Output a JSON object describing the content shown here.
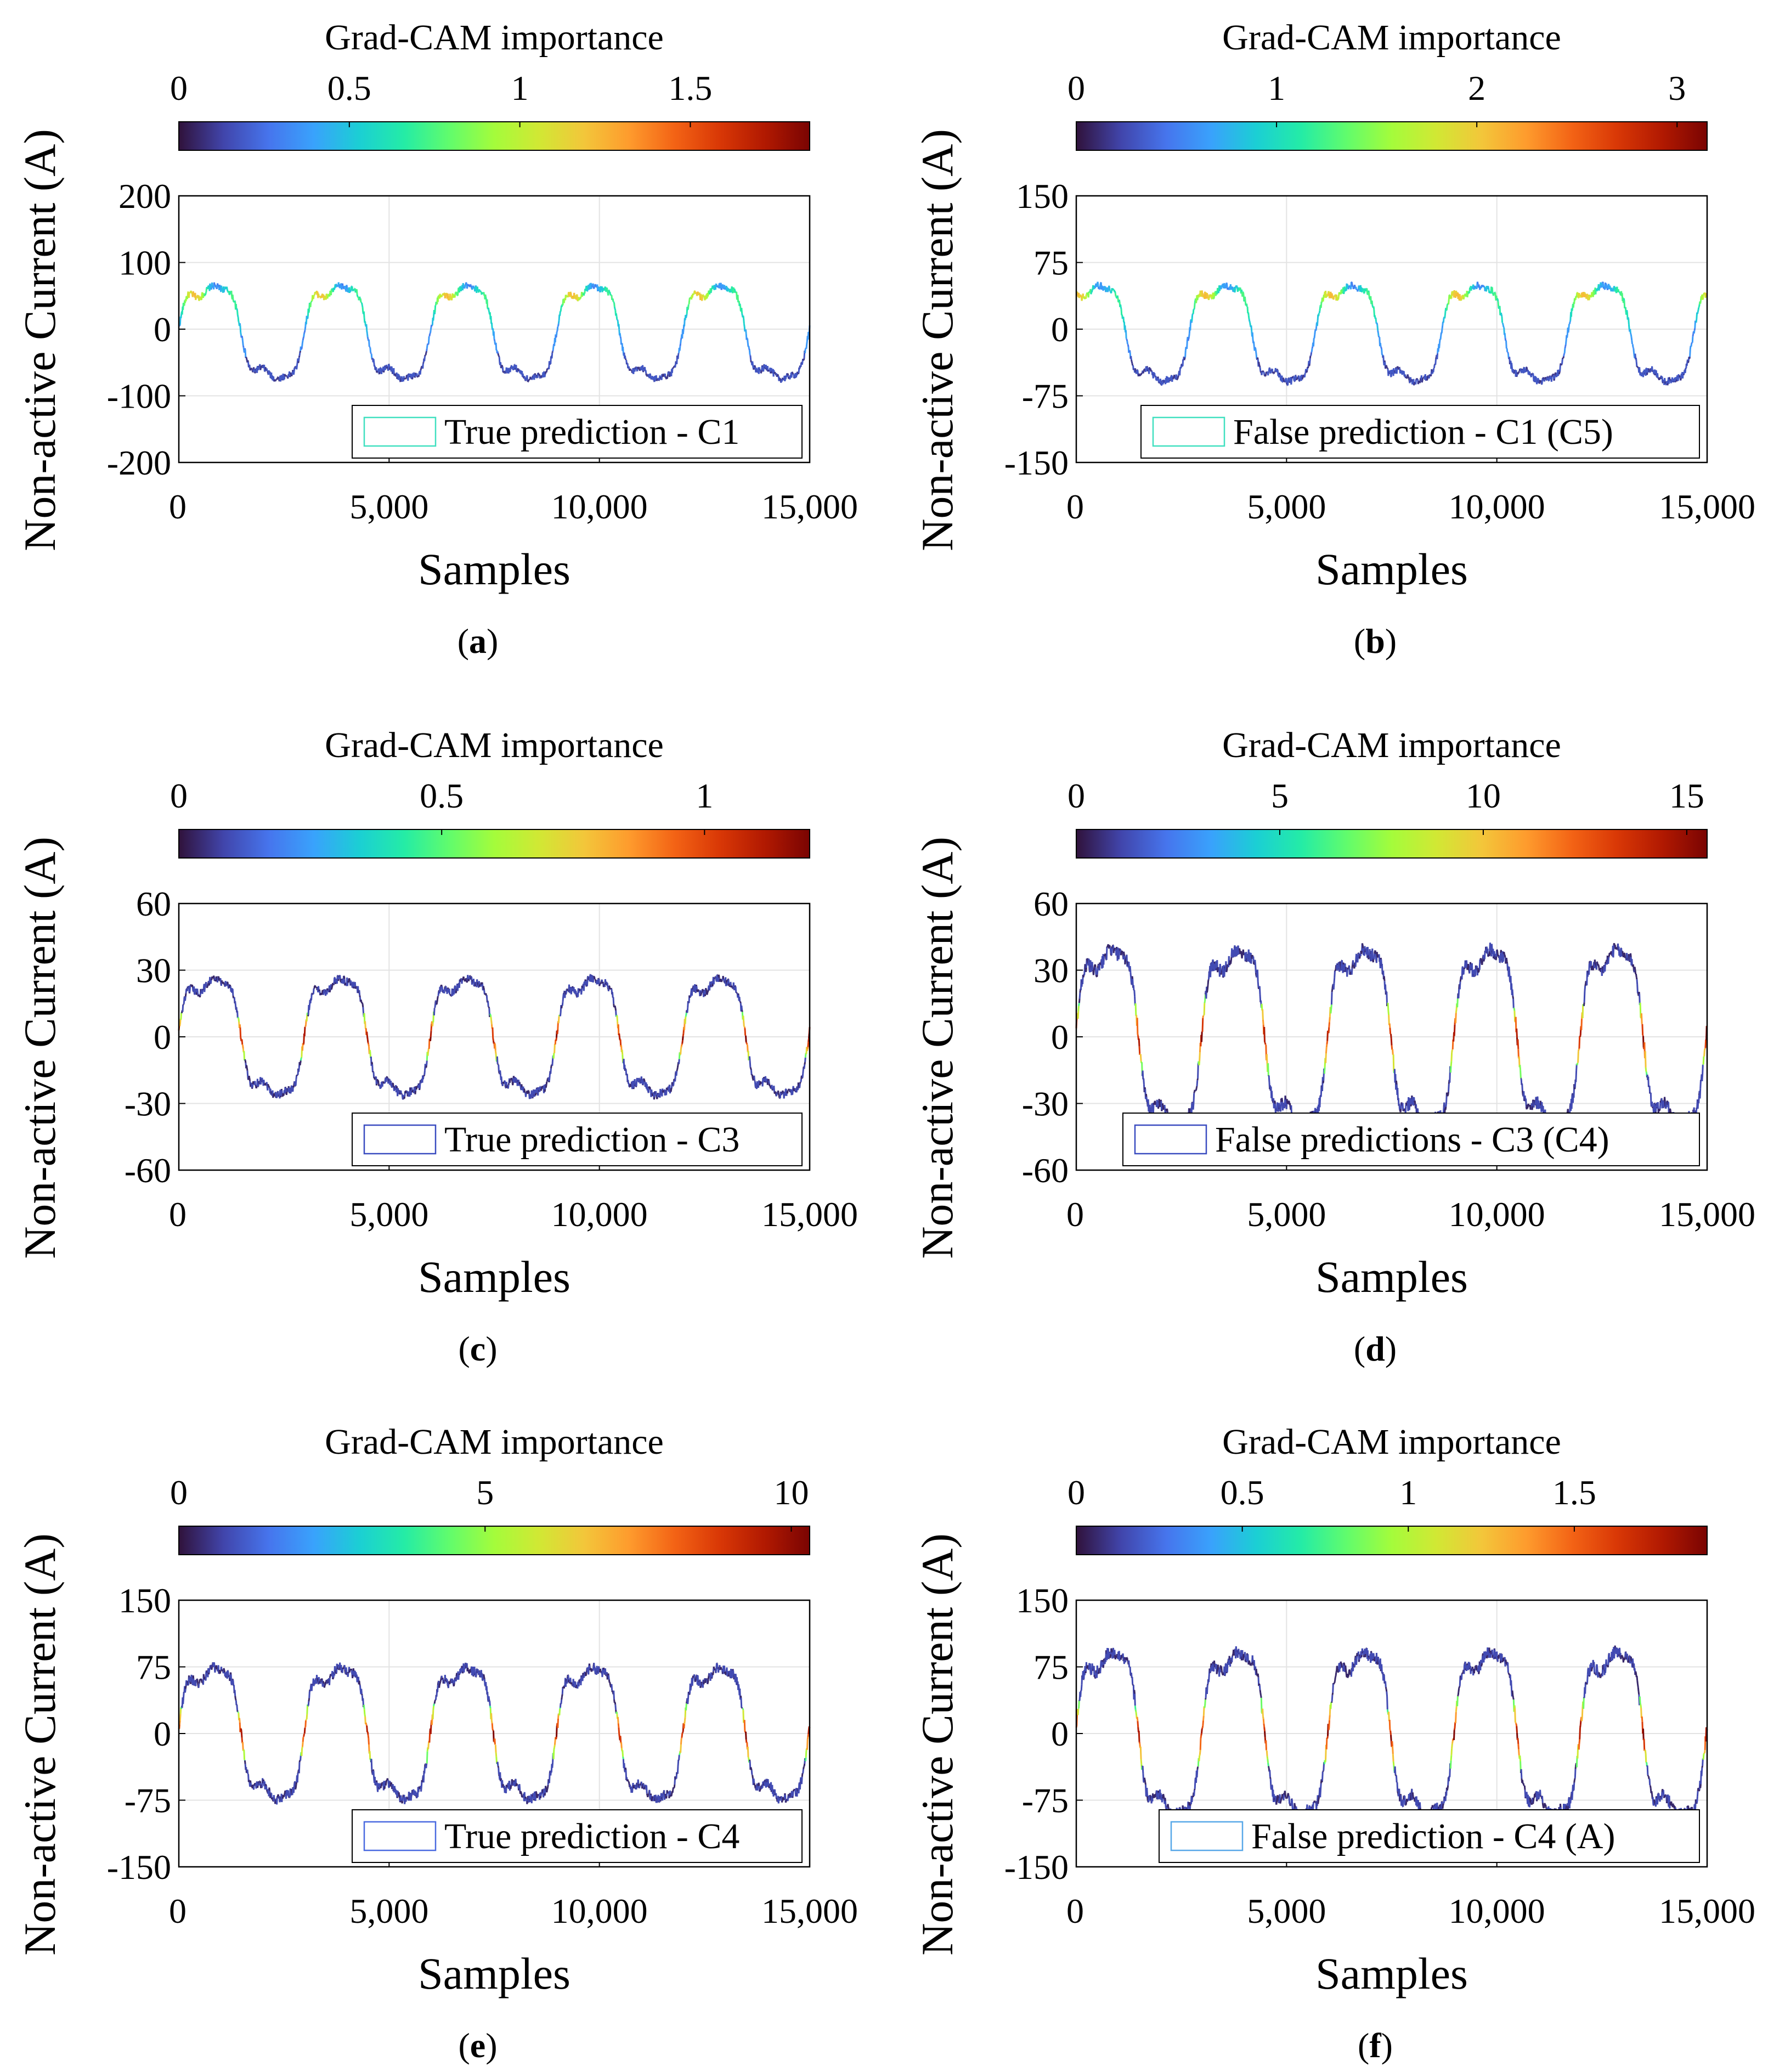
{
  "chart_data": [
    {
      "id": "a",
      "type": "line",
      "caption_letter": "a",
      "colorbar": {
        "title": "Grad-CAM importance",
        "ticks": [
          "0",
          "0.5",
          "1",
          "1.5"
        ],
        "tick_values": [
          0,
          0.5,
          1,
          1.5
        ],
        "range": [
          0,
          1.85
        ]
      },
      "xlabel": "Samples",
      "ylabel": "Non-active Current (A)",
      "xlim": [
        0,
        15000
      ],
      "xticks": [
        "0",
        "5,000",
        "10,000",
        "15,000"
      ],
      "ylim": [
        -200,
        200
      ],
      "yticks": [
        "-200",
        "-100",
        "0",
        "100",
        "200"
      ],
      "legend": {
        "label": "True prediction - C1",
        "color": "#40e0c0"
      },
      "signal": {
        "amplitude": 80,
        "offset": -5,
        "period": 3000,
        "phase": 0,
        "dominant": "mid-high"
      }
    },
    {
      "id": "b",
      "type": "line",
      "caption_letter": "b",
      "colorbar": {
        "title": "Grad-CAM importance",
        "ticks": [
          "0",
          "1",
          "2",
          "3"
        ],
        "tick_values": [
          0,
          1,
          2,
          3
        ],
        "range": [
          0,
          3.15
        ]
      },
      "xlabel": "Samples",
      "ylabel": "Non-active Current (A)",
      "xlim": [
        0,
        15000
      ],
      "xticks": [
        "0",
        "5,000",
        "10,000",
        "15,000"
      ],
      "ylim": [
        -150,
        150
      ],
      "yticks": [
        "-150",
        "-75",
        "0",
        "75",
        "150"
      ],
      "legend": {
        "label": "False prediction - C1 (C5)",
        "color": "#40e0c0"
      },
      "signal": {
        "amplitude": 62,
        "offset": -5,
        "period": 3000,
        "phase": 300,
        "dominant": "mid-high"
      }
    },
    {
      "id": "c",
      "type": "line",
      "caption_letter": "c",
      "colorbar": {
        "title": "Grad-CAM importance",
        "ticks": [
          "0",
          "0.5",
          "1"
        ],
        "tick_values": [
          0,
          0.5,
          1
        ],
        "range": [
          0,
          1.2
        ]
      },
      "xlabel": "Samples",
      "ylabel": "Non-active Current (A)",
      "xlim": [
        0,
        15000
      ],
      "xticks": [
        "0",
        "5,000",
        "10,000",
        "15,000"
      ],
      "ylim": [
        -60,
        60
      ],
      "yticks": [
        "-60",
        "-30",
        "0",
        "30",
        "60"
      ],
      "legend": {
        "label": "True prediction - C3",
        "color": "#3a4cc0"
      },
      "signal": {
        "amplitude": 30,
        "offset": 0,
        "period": 3000,
        "phase": 0,
        "dominant": "low"
      }
    },
    {
      "id": "d",
      "type": "line",
      "caption_letter": "d",
      "colorbar": {
        "title": "Grad-CAM importance",
        "ticks": [
          "0",
          "5",
          "10",
          "15"
        ],
        "tick_values": [
          0,
          5,
          10,
          15
        ],
        "range": [
          0,
          15.5
        ]
      },
      "xlabel": "Samples",
      "ylabel": "Non-active Current (A)",
      "xlim": [
        0,
        15000
      ],
      "xticks": [
        "0",
        "5,000",
        "10,000",
        "15,000"
      ],
      "ylim": [
        -60,
        60
      ],
      "yticks": [
        "-60",
        "-30",
        "0",
        "30",
        "60"
      ],
      "legend": {
        "label": "False predictions - C3 (C4)",
        "color": "#3a4cc0"
      },
      "signal": {
        "amplitude": 45,
        "offset": 0,
        "period": 3000,
        "phase": 0,
        "dominant": "low"
      }
    },
    {
      "id": "e",
      "type": "line",
      "caption_letter": "e",
      "colorbar": {
        "title": "Grad-CAM importance",
        "ticks": [
          "0",
          "5",
          "10"
        ],
        "tick_values": [
          0,
          5,
          10
        ],
        "range": [
          0,
          10.3
        ]
      },
      "xlabel": "Samples",
      "ylabel": "Non-active Current (A)",
      "xlim": [
        0,
        15000
      ],
      "xticks": [
        "0",
        "5,000",
        "10,000",
        "15,000"
      ],
      "ylim": [
        -150,
        150
      ],
      "yticks": [
        "-150",
        "-75",
        "0",
        "75",
        "150"
      ],
      "legend": {
        "label": "True prediction - C4",
        "color": "#4a6ae0"
      },
      "signal": {
        "amplitude": 85,
        "offset": 0,
        "period": 3000,
        "phase": 0,
        "dominant": "low"
      }
    },
    {
      "id": "f",
      "type": "line",
      "caption_letter": "f",
      "colorbar": {
        "title": "Grad-CAM importance",
        "ticks": [
          "0",
          "0.5",
          "1",
          "1.5"
        ],
        "tick_values": [
          0,
          0.5,
          1,
          1.5
        ],
        "range": [
          0,
          1.9
        ]
      },
      "xlabel": "Samples",
      "ylabel": "Non-active Current (A)",
      "xlim": [
        0,
        15000
      ],
      "xticks": [
        "0",
        "5,000",
        "10,000",
        "15,000"
      ],
      "ylim": [
        -150,
        150
      ],
      "yticks": [
        "-150",
        "-75",
        "0",
        "75",
        "150"
      ],
      "legend": {
        "label": "False prediction - C4 (A)",
        "color": "#58a8e8"
      },
      "signal": {
        "amplitude": 105,
        "offset": 0,
        "period": 3000,
        "phase": 0,
        "dominant": "low"
      }
    }
  ],
  "colormap": [
    "#30123b",
    "#4145ab",
    "#4675ed",
    "#39a2fc",
    "#1bcfd4",
    "#24eca6",
    "#61fc6c",
    "#a4fc3b",
    "#d1e834",
    "#f3c63a",
    "#fe9b2d",
    "#f36315",
    "#d93806",
    "#b11901",
    "#7a0402"
  ]
}
